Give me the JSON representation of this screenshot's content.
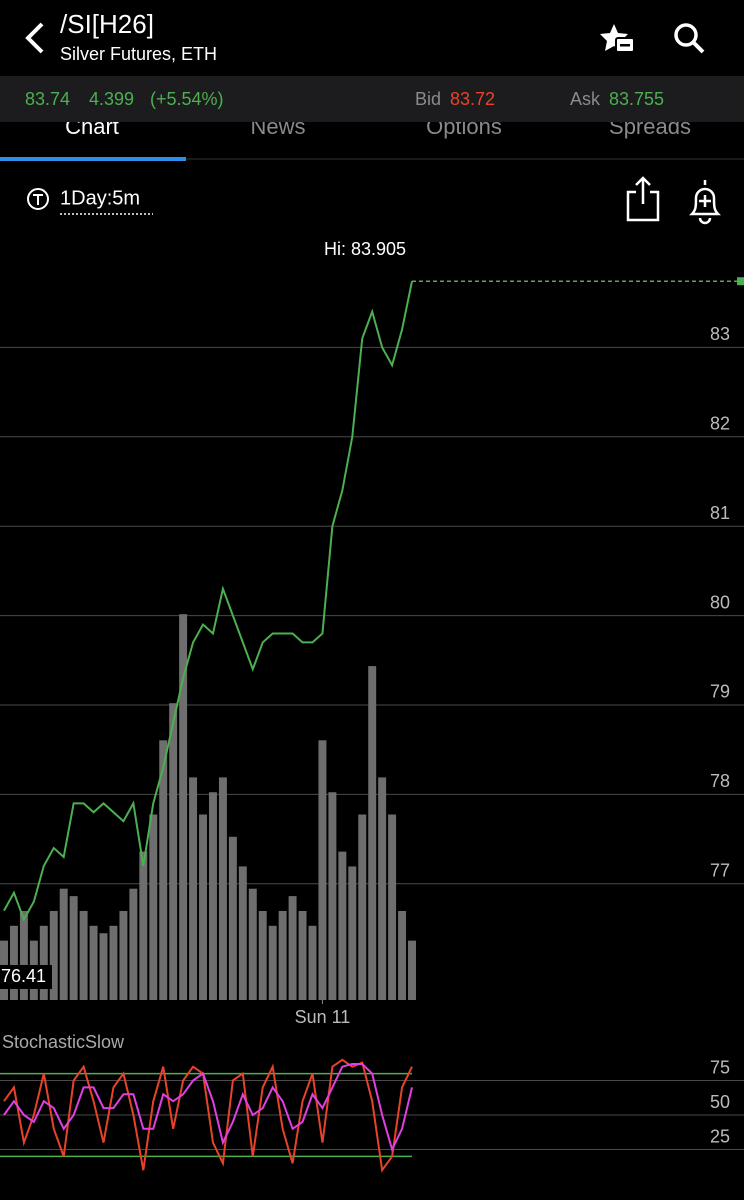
{
  "header": {
    "title": "/SI[H26]",
    "subtitle": "Silver Futures, ETH"
  },
  "quote": {
    "last": "83.74",
    "change": "4.399",
    "change_pct": "(+5.54%)",
    "bid_label": "Bid",
    "bid": "83.72",
    "ask_label": "Ask",
    "ask": "83.755"
  },
  "tabs": [
    "Chart",
    "News",
    "Options",
    "Spreads"
  ],
  "toolbar": {
    "period": "1Day:5m"
  },
  "chart_data": [
    {
      "type": "line",
      "color": "#4caf50",
      "categories": [
        null,
        null,
        null,
        null,
        null,
        null,
        null,
        null,
        null,
        null,
        null,
        null,
        null,
        null,
        null,
        null,
        null,
        null,
        null,
        null,
        null,
        null,
        null,
        null,
        null,
        null,
        null,
        null,
        null,
        null,
        null,
        null,
        "Sun 11",
        null,
        null,
        null,
        null,
        null,
        null,
        null,
        null,
        null
      ],
      "values": [
        76.7,
        76.9,
        76.6,
        76.8,
        77.2,
        77.4,
        77.3,
        77.9,
        77.9,
        77.8,
        77.9,
        77.8,
        77.7,
        77.9,
        77.2,
        77.9,
        78.3,
        78.8,
        79.3,
        79.7,
        79.9,
        79.8,
        80.3,
        80.0,
        79.7,
        79.4,
        79.7,
        79.8,
        79.8,
        79.8,
        79.7,
        79.7,
        79.8,
        81.0,
        81.4,
        82.0,
        83.1,
        83.4,
        83.0,
        82.8,
        83.2,
        83.74
      ],
      "volume": [
        8,
        10,
        12,
        8,
        10,
        12,
        15,
        14,
        12,
        10,
        9,
        10,
        12,
        15,
        20,
        25,
        35,
        40,
        52,
        30,
        25,
        28,
        30,
        22,
        18,
        15,
        12,
        10,
        12,
        14,
        12,
        10,
        35,
        28,
        20,
        18,
        25,
        45,
        30,
        25,
        12,
        8
      ],
      "volume_color": "#6e6e6e",
      "ylim": [
        75.7,
        84.0
      ],
      "yticks": [
        77,
        78,
        79,
        80,
        81,
        82,
        83
      ],
      "y2lim": [
        0,
        100
      ],
      "grid": true,
      "last_price": 83.74,
      "annotations": [
        "Hi: 83.905",
        "76.41"
      ]
    },
    {
      "type": "line",
      "title": "StochasticSlow",
      "series": [
        {
          "color": "#e8432a",
          "values": [
            60,
            70,
            30,
            50,
            80,
            40,
            20,
            75,
            85,
            60,
            30,
            70,
            80,
            50,
            10,
            60,
            85,
            40,
            75,
            85,
            80,
            30,
            15,
            75,
            80,
            20,
            70,
            85,
            40,
            15,
            60,
            80,
            30,
            85,
            90,
            85,
            88,
            60,
            10,
            20,
            70,
            85
          ]
        },
        {
          "color": "#e040e0",
          "values": [
            50,
            60,
            50,
            45,
            60,
            55,
            40,
            50,
            70,
            70,
            55,
            55,
            65,
            65,
            40,
            40,
            65,
            60,
            65,
            75,
            80,
            60,
            30,
            45,
            65,
            50,
            55,
            70,
            60,
            40,
            45,
            65,
            55,
            70,
            85,
            87,
            87,
            80,
            50,
            25,
            40,
            70
          ]
        }
      ],
      "ylim": [
        0,
        100
      ],
      "yticks": [
        25,
        50,
        75
      ],
      "ref_lines": [
        80,
        20
      ],
      "ref_color": "#4caf50",
      "grid": true
    }
  ]
}
